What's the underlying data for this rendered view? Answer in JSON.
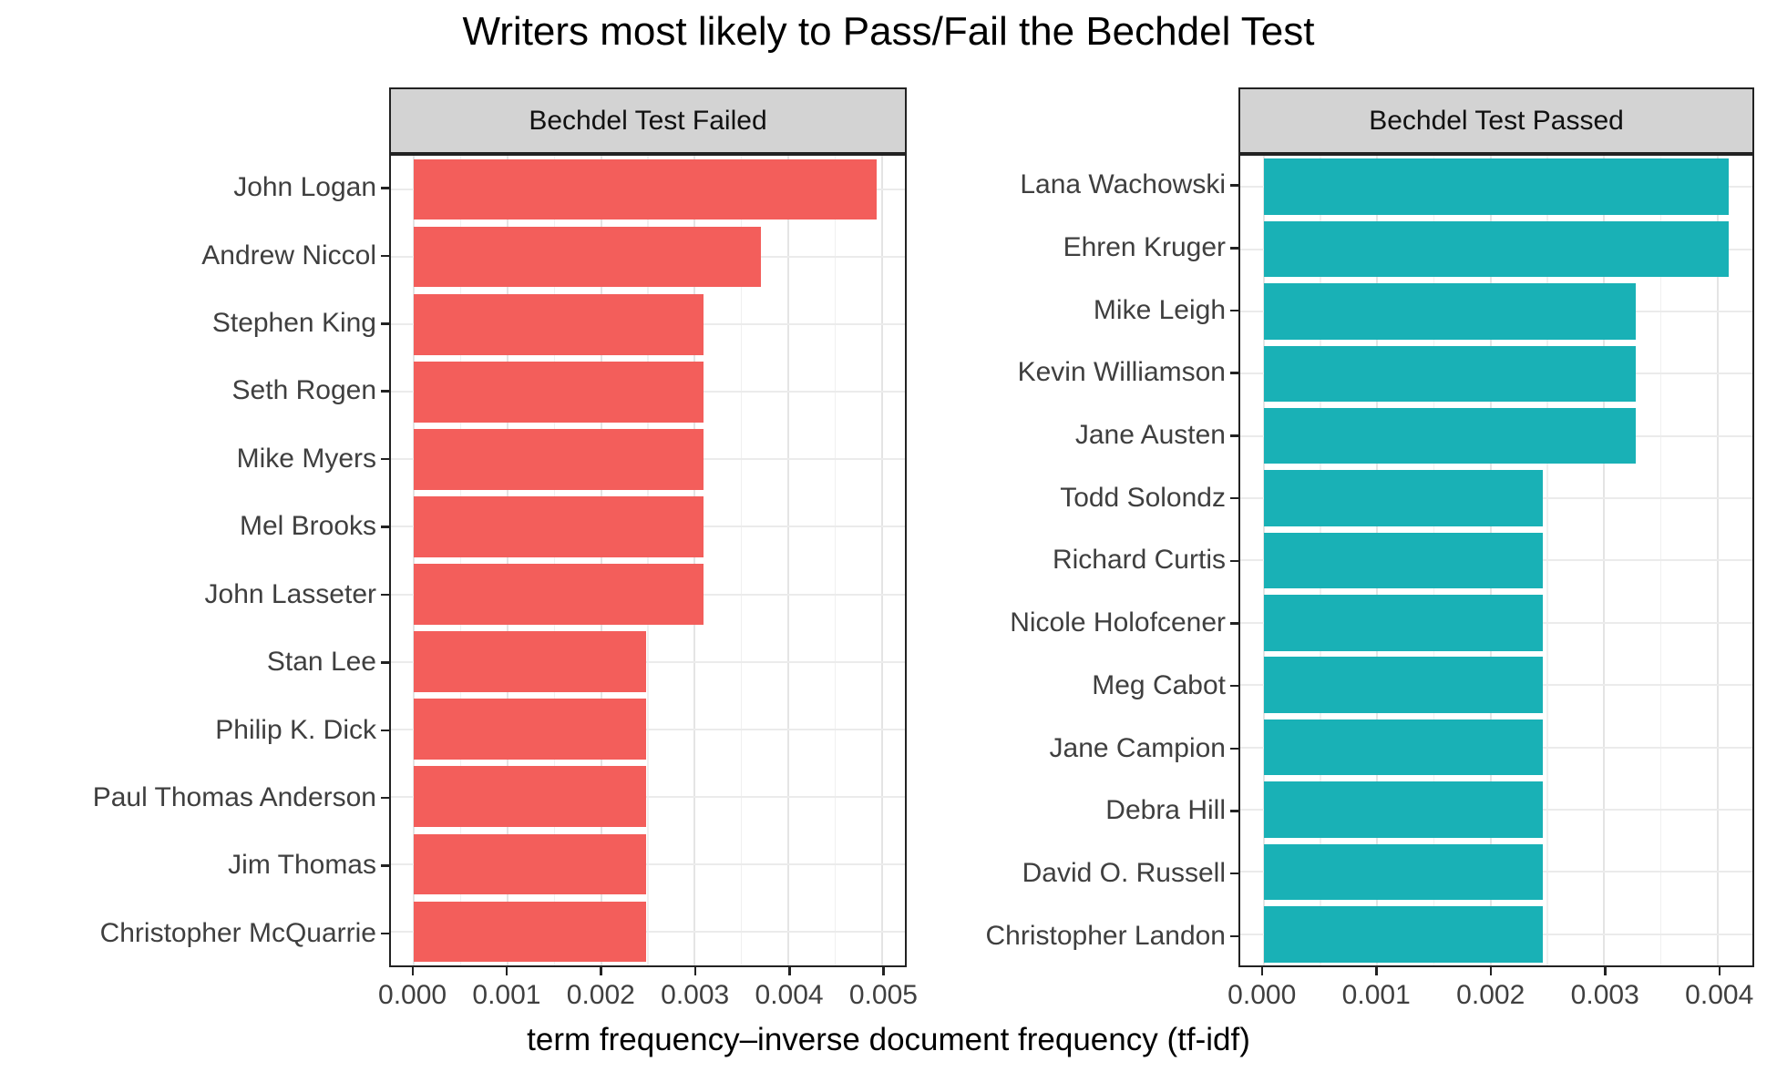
{
  "chart_data": {
    "type": "bar",
    "orientation": "horizontal",
    "title": "Writers most likely to Pass/Fail the Bechdel Test",
    "xlabel": "term frequency–inverse document frequency (tf-idf)",
    "legend": "none",
    "grid": true,
    "facets": [
      {
        "id": "failed",
        "label": "Bechdel Test Failed",
        "bar_color": "#F35E5B",
        "categories": [
          "John Logan",
          "Andrew Niccol",
          "Stephen King",
          "Seth Rogen",
          "Mike Myers",
          "Mel Brooks",
          "John Lasseter",
          "Stan Lee",
          "Philip K. Dick",
          "Paul Thomas Anderson",
          "Jim Thomas",
          "Christopher McQuarrie"
        ],
        "values": [
          0.00495,
          0.00371,
          0.00309,
          0.00309,
          0.00309,
          0.00309,
          0.00309,
          0.00248,
          0.00248,
          0.00248,
          0.00248,
          0.00248
        ],
        "x_ticks": [
          0,
          0.001,
          0.002,
          0.003,
          0.004,
          0.005
        ],
        "x_tick_labels": [
          "0.000",
          "0.001",
          "0.002",
          "0.003",
          "0.004",
          "0.005"
        ],
        "x_minor_ticks": [
          0.0005,
          0.0015,
          0.0025,
          0.0035,
          0.0045
        ],
        "xlim": [
          -0.0002475,
          0.0052475
        ]
      },
      {
        "id": "passed",
        "label": "Bechdel Test Passed",
        "bar_color": "#19B1B6",
        "categories": [
          "Lana Wachowski",
          "Ehren Kruger",
          "Mike Leigh",
          "Kevin Williamson",
          "Jane Austen",
          "Todd Solondz",
          "Richard Curtis",
          "Nicole Holofcener",
          "Meg Cabot",
          "Jane Campion",
          "Debra Hill",
          "David O. Russell",
          "Christopher Landon"
        ],
        "values": [
          0.0041,
          0.0041,
          0.00328,
          0.00328,
          0.00328,
          0.00246,
          0.00246,
          0.00246,
          0.00246,
          0.00246,
          0.00246,
          0.00246,
          0.00246
        ],
        "x_ticks": [
          0,
          0.001,
          0.002,
          0.003,
          0.004
        ],
        "x_tick_labels": [
          "0.000",
          "0.001",
          "0.002",
          "0.003",
          "0.004"
        ],
        "x_minor_ticks": [
          0.0005,
          0.0015,
          0.0025,
          0.0035
        ],
        "xlim": [
          -0.000205,
          0.004305
        ]
      }
    ],
    "colors": {
      "fail_bar": "#F35E5B",
      "pass_bar": "#19B1B6",
      "strip_fill": "#D3D3D3",
      "panel_border": "#222222",
      "grid_major": "#E4E4E4",
      "grid_minor": "#F0F0F0",
      "axis_text": "#3F3F3F"
    }
  },
  "layout_note": "faceted horizontal bar chart"
}
